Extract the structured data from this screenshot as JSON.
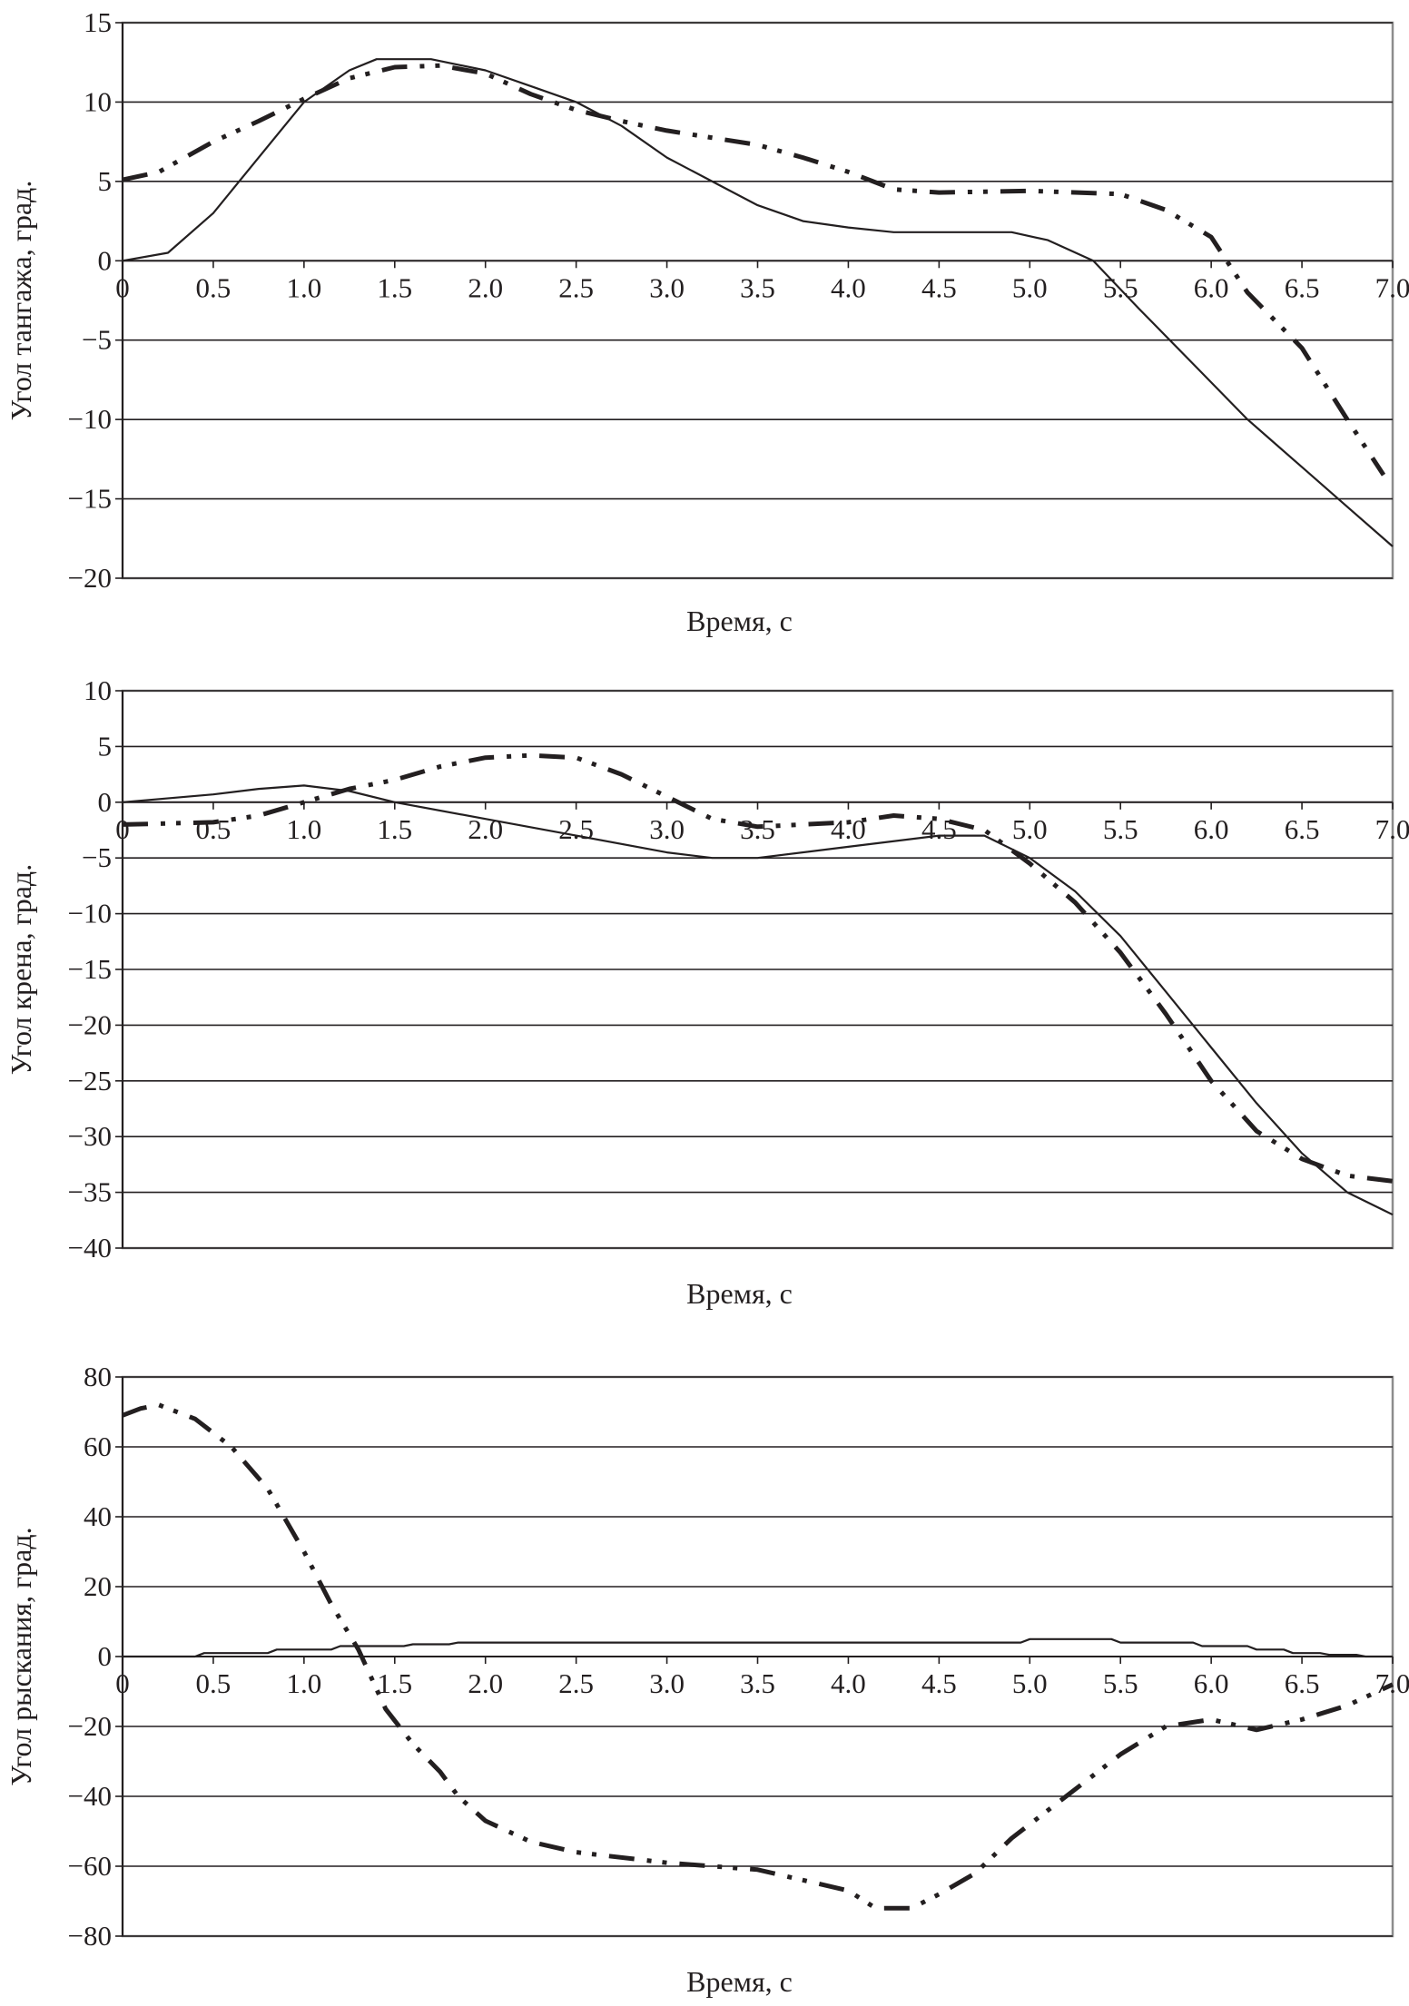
{
  "chart_data": [
    {
      "type": "line",
      "title": "",
      "xlabel": "Время, с",
      "ylabel": "Угол тангажа, град.",
      "xlim": [
        0,
        7
      ],
      "ylim": [
        -20,
        15
      ],
      "x_ticks": [
        "0",
        "0.5",
        "1.0",
        "1.5",
        "2.0",
        "2.5",
        "3.0",
        "3.5",
        "4.0",
        "4.5",
        "5.0",
        "5.5",
        "6.0",
        "6.5",
        "7.0"
      ],
      "y_ticks": [
        "15",
        "10",
        "5",
        "0",
        "−5",
        "−10",
        "−15",
        "−20"
      ],
      "y_tick_values": [
        15,
        10,
        5,
        0,
        -5,
        -10,
        -15,
        -20
      ],
      "grid": "horizontal",
      "series": [
        {
          "style": "solid",
          "x": [
            0,
            0.25,
            0.5,
            0.75,
            1.0,
            1.25,
            1.4,
            1.7,
            2.0,
            2.25,
            2.5,
            2.75,
            3.0,
            3.25,
            3.5,
            3.75,
            4.0,
            4.25,
            4.9,
            5.1,
            5.35,
            5.6,
            5.9,
            6.2,
            6.5,
            6.75,
            7.0
          ],
          "y": [
            0,
            0.5,
            3,
            6.5,
            10,
            12,
            12.7,
            12.7,
            12,
            11,
            10,
            8.5,
            6.5,
            5,
            3.5,
            2.5,
            2.1,
            1.8,
            1.8,
            1.3,
            0,
            -3,
            -6.5,
            -10,
            -13,
            -15.5,
            -18
          ]
        },
        {
          "style": "dash-dot-dot",
          "x": [
            0,
            0.2,
            0.5,
            0.75,
            1.0,
            1.25,
            1.5,
            1.75,
            2.0,
            2.25,
            2.5,
            2.75,
            3.0,
            3.5,
            3.75,
            4.0,
            4.25,
            4.5,
            5.0,
            5.5,
            5.75,
            6.0,
            6.2,
            6.5,
            6.75,
            6.95
          ],
          "y": [
            5.1,
            5.6,
            7.5,
            8.8,
            10.2,
            11.5,
            12.2,
            12.3,
            11.8,
            10.5,
            9.5,
            8.8,
            8.2,
            7.3,
            6.5,
            5.6,
            4.5,
            4.3,
            4.4,
            4.2,
            3.2,
            1.5,
            -2,
            -5.5,
            -10,
            -13.5
          ]
        }
      ]
    },
    {
      "type": "line",
      "title": "",
      "xlabel": "Время, с",
      "ylabel": "Угол крена, град.",
      "xlim": [
        0,
        7
      ],
      "ylim": [
        -40,
        10
      ],
      "x_ticks": [
        "0",
        "0.5",
        "1.0",
        "1.5",
        "2.0",
        "2.5",
        "3.0",
        "3.5",
        "4.0",
        "4.5",
        "5.0",
        "5.5",
        "6.0",
        "6.5",
        "7.0"
      ],
      "y_ticks": [
        "10",
        "5",
        "0",
        "−5",
        "−10",
        "−15",
        "−20",
        "−25",
        "−30",
        "−35",
        "−40"
      ],
      "y_tick_values": [
        10,
        5,
        0,
        -5,
        -10,
        -15,
        -20,
        -25,
        -30,
        -35,
        -40
      ],
      "grid": "horizontal",
      "series": [
        {
          "style": "solid",
          "x": [
            0,
            0.5,
            0.75,
            1.0,
            1.25,
            1.5,
            2.0,
            2.5,
            3.0,
            3.25,
            3.5,
            4.0,
            4.5,
            4.75,
            5.0,
            5.25,
            5.5,
            5.75,
            6.0,
            6.25,
            6.5,
            6.75,
            7.0
          ],
          "y": [
            0,
            0.7,
            1.2,
            1.5,
            1,
            0,
            -1.5,
            -3,
            -4.5,
            -5,
            -5,
            -4,
            -3,
            -3,
            -5,
            -8,
            -12,
            -17,
            -22,
            -27,
            -31.5,
            -35,
            -37
          ]
        },
        {
          "style": "dash-dot-dot",
          "x": [
            0,
            0.5,
            0.75,
            1.0,
            1.25,
            1.5,
            1.75,
            2.0,
            2.25,
            2.5,
            2.75,
            3.0,
            3.25,
            3.5,
            4.0,
            4.25,
            4.5,
            4.75,
            5.0,
            5.25,
            5.5,
            5.75,
            6.0,
            6.25,
            6.5,
            6.75,
            7.0
          ],
          "y": [
            -2,
            -1.8,
            -1.2,
            0,
            1.2,
            2,
            3.2,
            4,
            4.2,
            4,
            2.5,
            0.5,
            -1.5,
            -2.2,
            -1.8,
            -1.2,
            -1.5,
            -2.5,
            -5.5,
            -9,
            -13.5,
            -19,
            -25,
            -29.5,
            -32,
            -33.5,
            -34
          ]
        }
      ]
    },
    {
      "type": "line",
      "title": "",
      "xlabel": "Время, с",
      "ylabel": "Угол рыскания, град.",
      "xlim": [
        0,
        7
      ],
      "ylim": [
        -80,
        80
      ],
      "x_ticks": [
        "0",
        "0.5",
        "1.0",
        "1.5",
        "2.0",
        "2.5",
        "3.0",
        "3.5",
        "4.0",
        "4.5",
        "5.0",
        "5.5",
        "6.0",
        "6.5",
        "7.0"
      ],
      "y_ticks": [
        "80",
        "60",
        "40",
        "20",
        "0",
        "−20",
        "−40",
        "−60",
        "−80"
      ],
      "y_tick_values": [
        80,
        60,
        40,
        20,
        0,
        -20,
        -40,
        -60,
        -80
      ],
      "grid": "horizontal",
      "series": [
        {
          "style": "solid",
          "x": [
            0,
            0.4,
            0.45,
            0.8,
            0.85,
            1.15,
            1.2,
            1.55,
            1.6,
            1.8,
            1.85,
            4.95,
            5.0,
            5.45,
            5.5,
            5.9,
            5.95,
            6.2,
            6.25,
            6.4,
            6.45,
            6.6,
            6.65,
            6.8,
            6.85,
            7.0
          ],
          "y": [
            0,
            0,
            1,
            1,
            2,
            2,
            3,
            3,
            3.5,
            3.5,
            4,
            4,
            5,
            5,
            4,
            4,
            3,
            3,
            2,
            2,
            1,
            1,
            0.5,
            0.5,
            0,
            0
          ]
        },
        {
          "style": "dash-dot-dot",
          "x": [
            0,
            0.1,
            0.2,
            0.4,
            0.6,
            0.8,
            1.0,
            1.15,
            1.3,
            1.45,
            1.6,
            1.75,
            1.85,
            2.0,
            2.25,
            2.5,
            3.0,
            3.5,
            4.0,
            4.15,
            4.35,
            4.5,
            4.7,
            4.9,
            5.2,
            5.5,
            5.75,
            6.0,
            6.25,
            6.5,
            6.75,
            7.0
          ],
          "y": [
            69,
            71,
            72,
            68,
            60,
            48,
            30,
            15,
            2,
            -15,
            -25,
            -33,
            -40,
            -47,
            -53,
            -56,
            -59,
            -61,
            -67,
            -72,
            -72,
            -68,
            -62,
            -52,
            -40,
            -28,
            -20,
            -18,
            -21,
            -18,
            -14,
            -8
          ]
        }
      ]
    }
  ],
  "colors": {
    "line": "#231f20",
    "grid": "#231f20",
    "frame": "#8c8c8c"
  }
}
